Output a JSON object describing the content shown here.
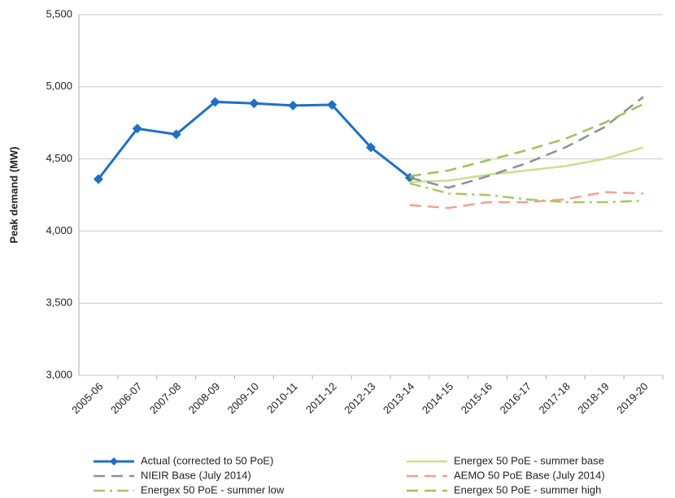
{
  "chart_data": {
    "type": "line",
    "y_label": "Peak demand (MW)",
    "categories": [
      "2005-06",
      "2006-07",
      "2007-08",
      "2008-09",
      "2009-10",
      "2010-11",
      "2011-12",
      "2012-13",
      "2013-14",
      "2014-15",
      "2015-16",
      "2016-17",
      "2017-18",
      "2018-19",
      "2019-20"
    ],
    "series": [
      {
        "name": "Actual (corrected to 50 PoE)",
        "color": "#1f6fc5",
        "style": "solid",
        "marker": "diamond",
        "values": [
          4360,
          4710,
          4670,
          4895,
          4885,
          4870,
          4875,
          4580,
          4370,
          null,
          null,
          null,
          null,
          null,
          null
        ]
      },
      {
        "name": "Energex 50 PoE - summer base",
        "color": "#c8df8e",
        "style": "solid",
        "values": [
          null,
          null,
          null,
          null,
          null,
          null,
          null,
          null,
          4340,
          4350,
          4390,
          4420,
          4450,
          4500,
          4580
        ]
      },
      {
        "name": "NIEIR Base (July 2014)",
        "color": "#8a8f9a",
        "style": "dashed",
        "values": [
          null,
          null,
          null,
          null,
          null,
          null,
          null,
          null,
          4370,
          4300,
          4380,
          4470,
          4580,
          4720,
          4930
        ]
      },
      {
        "name": "AEMO 50 PoE Base (July 2014)",
        "color": "#f4a090",
        "style": "dashed",
        "values": [
          null,
          null,
          null,
          null,
          null,
          null,
          null,
          null,
          4180,
          4160,
          4200,
          4200,
          4220,
          4270,
          4260
        ]
      },
      {
        "name": "Energex 50 PoE - summer low",
        "color": "#a8c662",
        "style": "dashdot",
        "values": [
          null,
          null,
          null,
          null,
          null,
          null,
          null,
          null,
          4330,
          4260,
          4250,
          4220,
          4200,
          4200,
          4210
        ]
      },
      {
        "name": "Energex 50 PoE - summer high",
        "color": "#9cc35a",
        "style": "dashed",
        "values": [
          null,
          null,
          null,
          null,
          null,
          null,
          null,
          null,
          4380,
          4420,
          4490,
          4560,
          4640,
          4750,
          4880
        ]
      }
    ],
    "ylim": [
      3000,
      5500
    ],
    "yticks": [
      {
        "value": 3000,
        "label": "3,000"
      },
      {
        "value": 3500,
        "label": "3,500"
      },
      {
        "value": 4000,
        "label": "4,000"
      },
      {
        "value": 4500,
        "label": "4,500"
      },
      {
        "value": 5000,
        "label": "5,000"
      },
      {
        "value": 5500,
        "label": "5,500"
      }
    ],
    "grid": true
  }
}
